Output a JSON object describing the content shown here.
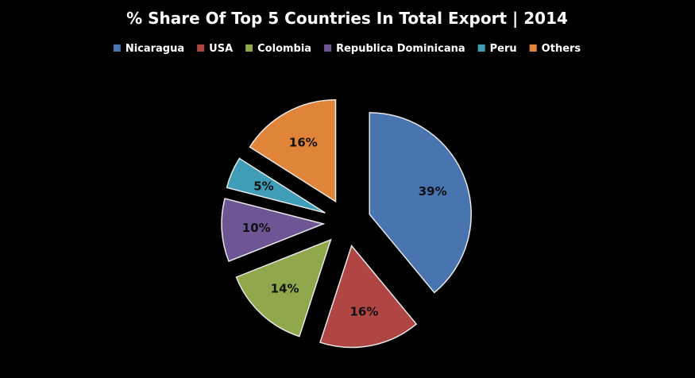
{
  "chart_data": {
    "type": "pie",
    "title": "% Share Of Top 5 Countries In Total Export | 2014",
    "legend_position": "top",
    "categories": [
      "Nicaragua",
      "USA",
      "Colombia",
      "Republica Dominicana",
      "Peru",
      "Others"
    ],
    "values": [
      39,
      16,
      14,
      10,
      5,
      16
    ],
    "labels": [
      "39%",
      "16%",
      "14%",
      "10%",
      "5%",
      "16%"
    ],
    "colors": [
      "#4874b0",
      "#b04644",
      "#8ea84b",
      "#6e5594",
      "#3f9db7",
      "#e0843a"
    ],
    "exploded": true
  }
}
